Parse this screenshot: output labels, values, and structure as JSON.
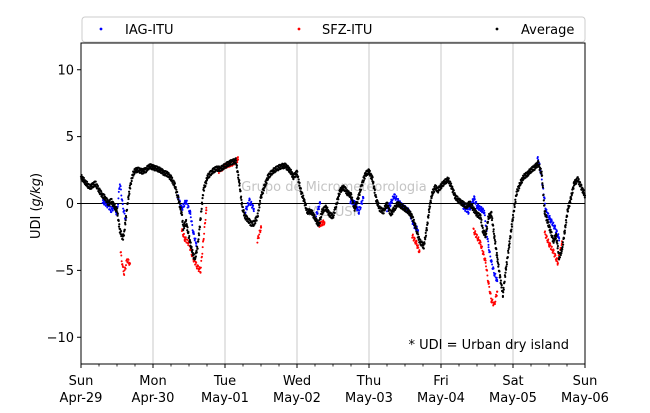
{
  "chart_data": {
    "type": "scatter",
    "title": "",
    "xlabel": "",
    "ylabel_text": "UDI (",
    "ylabel_unit": "g/kg",
    "ylabel_close": ")",
    "ylim": [
      -12,
      12
    ],
    "xlim_days": [
      0,
      7
    ],
    "yticks": [
      {
        "value": 10,
        "label": "10"
      },
      {
        "value": 5,
        "label": "5"
      },
      {
        "value": 0,
        "label": "0"
      },
      {
        "value": -5,
        "label": "−5"
      },
      {
        "value": -10,
        "label": "−10"
      }
    ],
    "xticks": [
      {
        "day": 0,
        "weekday": "Sun",
        "date": "Apr-29"
      },
      {
        "day": 1,
        "weekday": "Mon",
        "date": "Apr-30"
      },
      {
        "day": 2,
        "weekday": "Tue",
        "date": "May-01"
      },
      {
        "day": 3,
        "weekday": "Wed",
        "date": "May-02"
      },
      {
        "day": 4,
        "weekday": "Thu",
        "date": "May-03"
      },
      {
        "day": 5,
        "weekday": "Fri",
        "date": "May-04"
      },
      {
        "day": 6,
        "weekday": "Sat",
        "date": "May-05"
      },
      {
        "day": 7,
        "weekday": "Sun",
        "date": "May-06"
      }
    ],
    "grid": "vertical",
    "legend": {
      "placement": "top",
      "entries": [
        {
          "name": "IAG-ITU",
          "color": "#0000ff"
        },
        {
          "name": "SFZ-ITU",
          "color": "#ff0000"
        },
        {
          "name": "Average",
          "color": "#000000"
        }
      ]
    },
    "annotation": "* UDI = Urban dry island",
    "watermark": [
      "Grupo de Micrometeorologia",
      "IAG-USP"
    ],
    "series": [
      {
        "name": "Average",
        "color": "#000000",
        "x": [
          0.0,
          0.06,
          0.12,
          0.2,
          0.26,
          0.3,
          0.34,
          0.38,
          0.42,
          0.46,
          0.5,
          0.54,
          0.58,
          0.6,
          0.64,
          0.68,
          0.72,
          0.76,
          0.8,
          0.85,
          0.9,
          0.95,
          1.0,
          1.05,
          1.1,
          1.15,
          1.2,
          1.25,
          1.3,
          1.35,
          1.4,
          1.42,
          1.46,
          1.5,
          1.54,
          1.58,
          1.62,
          1.66,
          1.7,
          1.76,
          1.82,
          1.88,
          1.94,
          2.0,
          2.05,
          2.1,
          2.15,
          2.2,
          2.24,
          2.28,
          2.32,
          2.36,
          2.4,
          2.45,
          2.5,
          2.55,
          2.6,
          2.66,
          2.72,
          2.78,
          2.84,
          2.9,
          2.95,
          3.0,
          3.05,
          3.1,
          3.14,
          3.2,
          3.26,
          3.3,
          3.35,
          3.4,
          3.45,
          3.5,
          3.55,
          3.6,
          3.65,
          3.7,
          3.75,
          3.8,
          3.85,
          3.9,
          3.95,
          4.0,
          4.05,
          4.1,
          4.15,
          4.2,
          4.25,
          4.3,
          4.35,
          4.4,
          4.5,
          4.55,
          4.6,
          4.65,
          4.7,
          4.76,
          4.8,
          4.84,
          4.88,
          4.92,
          4.96,
          5.0,
          5.05,
          5.1,
          5.15,
          5.2,
          5.25,
          5.3,
          5.35,
          5.4,
          5.45,
          5.5,
          5.55,
          5.58,
          5.62,
          5.66,
          5.7,
          5.74,
          5.78,
          5.82,
          5.86,
          5.9,
          5.95,
          6.0,
          6.05,
          6.1,
          6.15,
          6.2,
          6.25,
          6.3,
          6.35,
          6.4,
          6.44,
          6.48,
          6.52,
          6.56,
          6.6,
          6.64,
          6.68,
          6.72,
          6.76,
          6.8,
          6.85,
          6.9,
          6.95,
          7.0
        ],
        "y": [
          2.0,
          1.6,
          1.2,
          1.5,
          0.9,
          0.6,
          0.4,
          0.0,
          0.2,
          -0.2,
          -0.5,
          -2.0,
          -2.6,
          -2.2,
          -0.3,
          1.2,
          2.2,
          2.5,
          2.5,
          2.4,
          2.5,
          2.8,
          2.7,
          2.6,
          2.5,
          2.3,
          2.2,
          1.9,
          1.4,
          0.4,
          -0.8,
          -1.8,
          -1.4,
          -2.5,
          -3.5,
          -4.2,
          -3.2,
          -1.2,
          1.0,
          2.0,
          2.4,
          2.6,
          2.6,
          2.8,
          3.0,
          3.1,
          3.2,
          1.5,
          -0.3,
          -1.0,
          -1.2,
          -1.5,
          -1.5,
          -1.0,
          0.5,
          1.3,
          2.0,
          2.4,
          2.6,
          2.8,
          2.8,
          2.5,
          2.0,
          2.3,
          1.0,
          0.2,
          -0.6,
          -0.6,
          -1.2,
          -1.6,
          -0.6,
          -0.3,
          -0.8,
          -1.0,
          0.0,
          1.0,
          1.2,
          0.8,
          0.6,
          -0.4,
          0.4,
          1.4,
          2.2,
          2.4,
          1.8,
          0.3,
          -0.4,
          -0.6,
          0.0,
          -0.8,
          -0.4,
          0.0,
          -0.4,
          -0.6,
          -1.0,
          -1.8,
          -2.8,
          -3.2,
          -2.0,
          -0.3,
          0.8,
          1.2,
          1.0,
          1.3,
          1.6,
          1.8,
          1.2,
          0.5,
          0.2,
          0.0,
          -0.2,
          0.0,
          -0.4,
          -0.8,
          -1.0,
          -2.0,
          -2.4,
          -1.0,
          -0.8,
          -2.4,
          -4.0,
          -5.5,
          -6.8,
          -5.0,
          -3.0,
          -1.0,
          0.8,
          1.5,
          2.0,
          2.2,
          2.5,
          2.7,
          3.0,
          2.2,
          -0.6,
          -1.4,
          -2.0,
          -2.8,
          -2.4,
          -4.0,
          -3.5,
          -2.0,
          -0.5,
          0.3,
          1.5,
          1.8,
          1.2,
          0.6
        ]
      },
      {
        "name": "IAG-ITU",
        "color": "#0000ff",
        "x": [
          0.3,
          0.38,
          0.42,
          0.46,
          0.5,
          0.54,
          0.58,
          0.62,
          1.34,
          1.4,
          1.46,
          1.52,
          1.56,
          1.6,
          2.28,
          2.34,
          2.4,
          3.26,
          3.32,
          3.74,
          3.8,
          3.86,
          3.92,
          4.25,
          4.3,
          4.35,
          4.4,
          4.46,
          4.56,
          4.62,
          4.68,
          5.3,
          5.38,
          5.46,
          5.5,
          5.6,
          5.66,
          5.7,
          5.74,
          5.78,
          6.34,
          6.38,
          6.46,
          6.52,
          6.58,
          6.64
        ],
        "y": [
          0.2,
          -0.2,
          -0.5,
          -0.2,
          -0.8,
          1.6,
          -0.2,
          -1.2,
          0.6,
          -0.4,
          0.2,
          -0.8,
          -2.2,
          -3.0,
          -0.6,
          0.2,
          -0.4,
          -1.0,
          0.0,
          0.2,
          0.0,
          -0.6,
          0.4,
          -0.4,
          0.0,
          0.6,
          0.2,
          -0.2,
          -0.6,
          -1.6,
          -2.0,
          -0.2,
          -0.6,
          0.4,
          -0.2,
          -0.6,
          -3.2,
          -4.4,
          -5.2,
          -5.8,
          3.4,
          2.6,
          -0.6,
          -1.2,
          -1.8,
          -2.6
        ]
      },
      {
        "name": "SFZ-ITU",
        "color": "#ff0000",
        "x": [
          0.55,
          0.58,
          0.6,
          0.64,
          0.68,
          1.4,
          1.44,
          1.5,
          1.55,
          1.62,
          1.66,
          1.74,
          1.9,
          2.0,
          2.1,
          2.18,
          2.45,
          2.5,
          3.3,
          3.38,
          4.6,
          4.66,
          4.7,
          5.45,
          5.55,
          5.62,
          5.66,
          5.7,
          5.74,
          5.78,
          6.44,
          6.5,
          6.56,
          6.62,
          6.68
        ],
        "y": [
          -3.6,
          -4.8,
          -5.2,
          -4.2,
          -4.5,
          -2.0,
          -2.6,
          -3.0,
          -4.0,
          -4.8,
          -5.0,
          -0.5,
          2.4,
          2.8,
          3.0,
          3.3,
          -2.8,
          -1.8,
          -1.6,
          -1.4,
          -2.4,
          -3.0,
          -3.6,
          -2.0,
          -3.0,
          -4.4,
          -6.0,
          -7.2,
          -7.6,
          -6.6,
          -2.2,
          -3.0,
          -3.6,
          -4.4,
          -3.0
        ]
      }
    ]
  }
}
